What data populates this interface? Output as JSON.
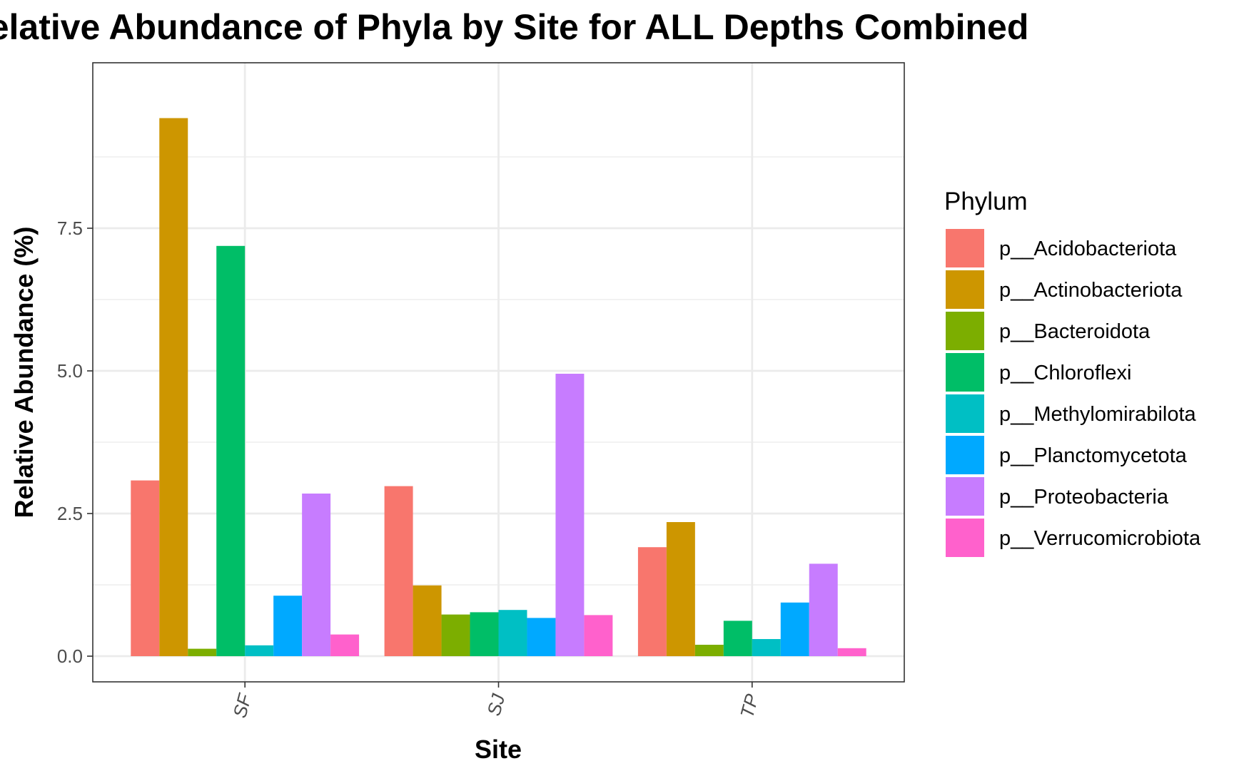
{
  "chart_data": {
    "type": "bar",
    "title": "Relative Abundance of Phyla by Site for ALL Depths Combined",
    "xlabel": "Site",
    "ylabel": "Relative Abundance (%)",
    "categories": [
      "SF",
      "SJ",
      "TP"
    ],
    "ylim": [
      -0.45,
      10.4
    ],
    "y_ticks": [
      0.0,
      2.5,
      5.0,
      7.5
    ],
    "y_tick_labels": [
      "0.0",
      "2.5",
      "5.0",
      "7.5"
    ],
    "grid": true,
    "legend_title": "Phylum",
    "legend_position": "right",
    "series": [
      {
        "name": "p__Acidobacteriota",
        "color": "#F8766D",
        "values": [
          3.08,
          2.98,
          1.91
        ]
      },
      {
        "name": "p__Actinobacteriota",
        "color": "#CD9600",
        "values": [
          9.43,
          1.24,
          2.35
        ]
      },
      {
        "name": "p__Bacteroidota",
        "color": "#7CAE00",
        "values": [
          0.13,
          0.73,
          0.2
        ]
      },
      {
        "name": "p__Chloroflexi",
        "color": "#00BE67",
        "values": [
          7.19,
          0.77,
          0.62
        ]
      },
      {
        "name": "p__Methylomirabilota",
        "color": "#00BFC4",
        "values": [
          0.19,
          0.81,
          0.3
        ]
      },
      {
        "name": "p__Planctomycetota",
        "color": "#00A9FF",
        "values": [
          1.06,
          0.67,
          0.94
        ]
      },
      {
        "name": "p__Proteobacteria",
        "color": "#C77CFF",
        "values": [
          2.85,
          4.95,
          1.62
        ]
      },
      {
        "name": "p__Verrucomicrobiota",
        "color": "#FF61CC",
        "values": [
          0.38,
          0.72,
          0.14
        ]
      }
    ]
  }
}
